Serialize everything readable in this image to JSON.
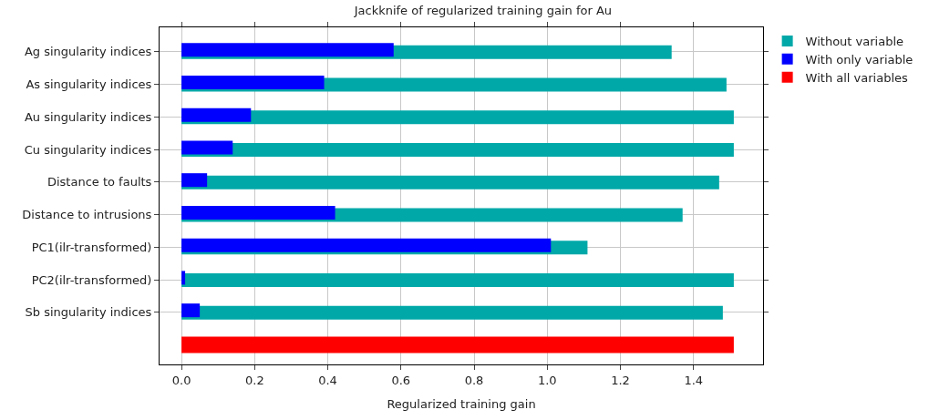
{
  "chart_data": {
    "type": "bar",
    "orientation": "horizontal",
    "title": "Jackknife of regularized training gain for Au",
    "xlabel": "Regularized training gain",
    "categories": [
      "Ag singularity indices",
      "As singularity indices",
      "Au singularity indices",
      "Cu singularity indices",
      "Distance to faults",
      "Distance to intrusions",
      "PC1(ilr-transformed)",
      "PC2(ilr-transformed)",
      "Sb singularity indices",
      null
    ],
    "series": [
      {
        "name": "Without variable",
        "color": "#00a8a8",
        "values": [
          1.34,
          1.49,
          1.51,
          1.51,
          1.47,
          1.37,
          1.11,
          1.51,
          1.48,
          null
        ]
      },
      {
        "name": "With only variable",
        "color": "#0000ff",
        "values": [
          0.58,
          0.39,
          0.19,
          0.14,
          0.07,
          0.42,
          1.01,
          0.01,
          0.05,
          null
        ]
      },
      {
        "name": "With all variables",
        "color": "#ff0000",
        "values": [
          null,
          null,
          null,
          null,
          null,
          null,
          null,
          null,
          null,
          1.51
        ]
      }
    ],
    "xlim": [
      -0.06,
      1.59
    ],
    "xticks": [
      {
        "value": 0,
        "label": "0.0"
      },
      0.2,
      0.4,
      0.6,
      0.8,
      {
        "value": 1,
        "label": "1.0"
      },
      1.2,
      1.4
    ],
    "grid": true,
    "legend": "top right"
  }
}
